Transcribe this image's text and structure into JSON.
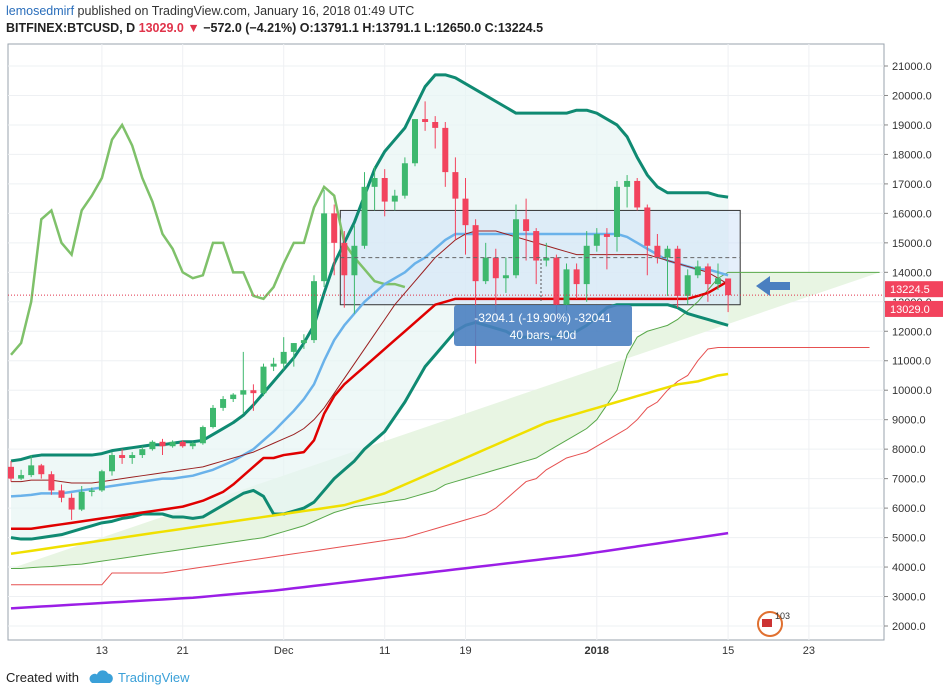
{
  "header": {
    "author": "lemosedmirf",
    "published_text": " published on TradingView.com, January 16, 2018 01:49 UTC",
    "symbol": "BITFINEX:BTCUSD, D",
    "last": "13029.0",
    "change": "−572.0 (−4.21%)",
    "ohlc": "O:13791.1 H:13791.1 L:12650.0 C:13224.5"
  },
  "footer": {
    "created_with": "Created with",
    "brand": "TradingView"
  },
  "colors": {
    "up": "#3eb86e",
    "down": "#f2435d",
    "bb": "#0f8a72",
    "bb_basis": "#6ab2ea",
    "ema_red": "#e00000",
    "ema_yellow": "#f0e000",
    "ema_purple": "#9b1ee6",
    "lagging": "#7fc16a",
    "cloud_fill": "#e8f5e3",
    "box_fill": "#cfe2f7"
  },
  "chart_data": {
    "type": "candlestick",
    "title": "BITFINEX:BTCUSD, D",
    "y_ticks": [
      "21000.0",
      "20000.0",
      "19000.0",
      "18000.0",
      "17000.0",
      "16000.0",
      "15000.0",
      "14000.0",
      "13000.0",
      "12000.0",
      "11000.0",
      "10000.0",
      "9000.0",
      "8000.0",
      "7000.0",
      "6000.0",
      "5000.0",
      "4000.0",
      "3000.0",
      "2000.0"
    ],
    "x_ticks": [
      "13",
      "21",
      "Dec",
      "11",
      "19",
      "2018",
      "15",
      "23"
    ],
    "ylim": [
      1500,
      22000
    ],
    "price_labels": {
      "close": "13224.5",
      "last": "13029.0"
    },
    "measure": {
      "line1": "-3204.1 (-19.90%) -32041",
      "line2": "40 bars, 40d"
    },
    "candles": [
      {
        "d": "Nov 6",
        "o": 7400,
        "h": 7600,
        "l": 6900,
        "c": 7000
      },
      {
        "d": "Nov 7",
        "o": 7000,
        "h": 7300,
        "l": 6950,
        "c": 7120
      },
      {
        "d": "Nov 8",
        "o": 7120,
        "h": 7800,
        "l": 7050,
        "c": 7450
      },
      {
        "d": "Nov 9",
        "o": 7450,
        "h": 7500,
        "l": 7000,
        "c": 7150
      },
      {
        "d": "Nov 10",
        "o": 7150,
        "h": 7250,
        "l": 6450,
        "c": 6600
      },
      {
        "d": "Nov 11",
        "o": 6600,
        "h": 6800,
        "l": 6200,
        "c": 6350
      },
      {
        "d": "Nov 12",
        "o": 6350,
        "h": 6500,
        "l": 5600,
        "c": 5950
      },
      {
        "d": "Nov 13",
        "o": 5950,
        "h": 6750,
        "l": 5900,
        "c": 6550
      },
      {
        "d": "Nov 14",
        "o": 6550,
        "h": 6700,
        "l": 6400,
        "c": 6600
      },
      {
        "d": "Nov 15",
        "o": 6600,
        "h": 7300,
        "l": 6550,
        "c": 7250
      },
      {
        "d": "Nov 16",
        "o": 7250,
        "h": 7900,
        "l": 7100,
        "c": 7800
      },
      {
        "d": "Nov 17",
        "o": 7800,
        "h": 8000,
        "l": 7500,
        "c": 7700
      },
      {
        "d": "Nov 18",
        "o": 7700,
        "h": 7900,
        "l": 7500,
        "c": 7800
      },
      {
        "d": "Nov 19",
        "o": 7800,
        "h": 8100,
        "l": 7700,
        "c": 8000
      },
      {
        "d": "Nov 20",
        "o": 8000,
        "h": 8300,
        "l": 7950,
        "c": 8250
      },
      {
        "d": "Nov 21",
        "o": 8250,
        "h": 8350,
        "l": 7800,
        "c": 8100
      },
      {
        "d": "Nov 22",
        "o": 8100,
        "h": 8300,
        "l": 8050,
        "c": 8250
      },
      {
        "d": "Nov 23",
        "o": 8250,
        "h": 8300,
        "l": 8050,
        "c": 8100
      },
      {
        "d": "Nov 24",
        "o": 8100,
        "h": 8250,
        "l": 8000,
        "c": 8200
      },
      {
        "d": "Nov 25",
        "o": 8200,
        "h": 8800,
        "l": 8150,
        "c": 8750
      },
      {
        "d": "Nov 26",
        "o": 8750,
        "h": 9500,
        "l": 8700,
        "c": 9400
      },
      {
        "d": "Nov 27",
        "o": 9400,
        "h": 9800,
        "l": 9300,
        "c": 9700
      },
      {
        "d": "Nov 28",
        "o": 9700,
        "h": 9900,
        "l": 9600,
        "c": 9850
      },
      {
        "d": "Nov 29",
        "o": 9850,
        "h": 11300,
        "l": 9200,
        "c": 10000
      },
      {
        "d": "Nov 30",
        "o": 10000,
        "h": 10200,
        "l": 9300,
        "c": 9900
      },
      {
        "d": "Dec 1",
        "o": 9900,
        "h": 10900,
        "l": 9800,
        "c": 10800
      },
      {
        "d": "Dec 2",
        "o": 10800,
        "h": 11100,
        "l": 10650,
        "c": 10900
      },
      {
        "d": "Dec 3",
        "o": 10900,
        "h": 11800,
        "l": 10700,
        "c": 11300
      },
      {
        "d": "Dec 4",
        "o": 11300,
        "h": 11600,
        "l": 10800,
        "c": 11600
      },
      {
        "d": "Dec 5",
        "o": 11600,
        "h": 11900,
        "l": 11400,
        "c": 11700
      },
      {
        "d": "Dec 6",
        "o": 11700,
        "h": 13900,
        "l": 11600,
        "c": 13700
      },
      {
        "d": "Dec 7",
        "o": 13700,
        "h": 16800,
        "l": 13500,
        "c": 16000
      },
      {
        "d": "Dec 8",
        "o": 16000,
        "h": 16300,
        "l": 13900,
        "c": 15000
      },
      {
        "d": "Dec 9",
        "o": 15000,
        "h": 15400,
        "l": 12800,
        "c": 13900
      },
      {
        "d": "Dec 10",
        "o": 13900,
        "h": 15600,
        "l": 12600,
        "c": 14900
      },
      {
        "d": "Dec 11",
        "o": 14900,
        "h": 17400,
        "l": 14800,
        "c": 16900
      },
      {
        "d": "Dec 12",
        "o": 16900,
        "h": 17600,
        "l": 16100,
        "c": 17200
      },
      {
        "d": "Dec 13",
        "o": 17200,
        "h": 17500,
        "l": 15900,
        "c": 16400
      },
      {
        "d": "Dec 14",
        "o": 16400,
        "h": 16800,
        "l": 16100,
        "c": 16600
      },
      {
        "d": "Dec 15",
        "o": 16600,
        "h": 17900,
        "l": 16500,
        "c": 17700
      },
      {
        "d": "Dec 16",
        "o": 17700,
        "h": 19200,
        "l": 17600,
        "c": 19200
      },
      {
        "d": "Dec 17",
        "o": 19200,
        "h": 19800,
        "l": 18800,
        "c": 19100
      },
      {
        "d": "Dec 18",
        "o": 19100,
        "h": 19300,
        "l": 18200,
        "c": 18900
      },
      {
        "d": "Dec 19",
        "o": 18900,
        "h": 19100,
        "l": 16900,
        "c": 17400
      },
      {
        "d": "Dec 20",
        "o": 17400,
        "h": 17900,
        "l": 15100,
        "c": 16500
      },
      {
        "d": "Dec 21",
        "o": 16500,
        "h": 17200,
        "l": 14600,
        "c": 15600
      },
      {
        "d": "Dec 22",
        "o": 15600,
        "h": 15800,
        "l": 10900,
        "c": 13700
      },
      {
        "d": "Dec 23",
        "o": 13700,
        "h": 15000,
        "l": 13600,
        "c": 14500
      },
      {
        "d": "Dec 24",
        "o": 14500,
        "h": 14800,
        "l": 12600,
        "c": 13800
      },
      {
        "d": "Dec 25",
        "o": 13800,
        "h": 14500,
        "l": 13300,
        "c": 13900
      },
      {
        "d": "Dec 26",
        "o": 13900,
        "h": 16300,
        "l": 13800,
        "c": 15800
      },
      {
        "d": "Dec 27",
        "o": 15800,
        "h": 16500,
        "l": 14400,
        "c": 15400
      },
      {
        "d": "Dec 28",
        "o": 15400,
        "h": 15500,
        "l": 13600,
        "c": 14400
      },
      {
        "d": "Dec 29",
        "o": 14400,
        "h": 15000,
        "l": 14200,
        "c": 14500
      },
      {
        "d": "Dec 30",
        "o": 14500,
        "h": 14600,
        "l": 12300,
        "c": 12900
      },
      {
        "d": "Dec 31",
        "o": 12900,
        "h": 14300,
        "l": 12700,
        "c": 14100
      },
      {
        "d": "Jan 1",
        "o": 14100,
        "h": 14300,
        "l": 13100,
        "c": 13600
      },
      {
        "d": "Jan 2",
        "o": 13600,
        "h": 15400,
        "l": 13000,
        "c": 14900
      },
      {
        "d": "Jan 3",
        "o": 14900,
        "h": 15500,
        "l": 14700,
        "c": 15300
      },
      {
        "d": "Jan 4",
        "o": 15300,
        "h": 15500,
        "l": 14100,
        "c": 15200
      },
      {
        "d": "Jan 5",
        "o": 15200,
        "h": 17100,
        "l": 14700,
        "c": 16900
      },
      {
        "d": "Jan 6",
        "o": 16900,
        "h": 17300,
        "l": 16200,
        "c": 17100
      },
      {
        "d": "Jan 7",
        "o": 17100,
        "h": 17200,
        "l": 16100,
        "c": 16200
      },
      {
        "d": "Jan 8",
        "o": 16200,
        "h": 16300,
        "l": 13900,
        "c": 14900
      },
      {
        "d": "Jan 9",
        "o": 14900,
        "h": 15300,
        "l": 14300,
        "c": 14500
      },
      {
        "d": "Jan 10",
        "o": 14500,
        "h": 14900,
        "l": 13200,
        "c": 14800
      },
      {
        "d": "Jan 11",
        "o": 14800,
        "h": 14900,
        "l": 12800,
        "c": 13200
      },
      {
        "d": "Jan 12",
        "o": 13200,
        "h": 14100,
        "l": 12900,
        "c": 13900
      },
      {
        "d": "Jan 13",
        "o": 13900,
        "h": 14400,
        "l": 13800,
        "c": 14200
      },
      {
        "d": "Jan 14",
        "o": 14200,
        "h": 14300,
        "l": 13000,
        "c": 13600
      },
      {
        "d": "Jan 15",
        "o": 13600,
        "h": 14300,
        "l": 13400,
        "c": 13800
      },
      {
        "d": "Jan 16",
        "o": 13791,
        "h": 13791,
        "l": 12650,
        "c": 13224
      }
    ],
    "series": [
      {
        "name": "",
        "role": "bb_upper",
        "color": "#0f8a72",
        "values": [
          7600,
          7650,
          7750,
          7800,
          7800,
          7800,
          7800,
          7800,
          7800,
          7850,
          7950,
          8000,
          8050,
          8100,
          8150,
          8150,
          8200,
          8250,
          8250,
          8300,
          8500,
          8700,
          8900,
          9150,
          9500,
          9900,
          10300,
          10700,
          11100,
          11600,
          12200,
          13300,
          14300,
          15000,
          15700,
          16600,
          17500,
          18100,
          18500,
          18900,
          19600,
          20300,
          20700,
          20700,
          20600,
          20400,
          20200,
          20000,
          19800,
          19600,
          19400,
          19400,
          19400,
          19400,
          19400,
          19400,
          19500,
          19500,
          19400,
          19200,
          19000,
          18600,
          17900,
          17300,
          16900,
          16700,
          16700,
          16700,
          16700,
          16700,
          16600,
          16550
        ]
      },
      {
        "name": "",
        "role": "bb_basis",
        "color": "#6ab2ea",
        "values": [
          6400,
          6420,
          6450,
          6500,
          6500,
          6500,
          6550,
          6600,
          6650,
          6700,
          6750,
          6800,
          6850,
          6900,
          6950,
          7000,
          7000,
          7050,
          7100,
          7200,
          7300,
          7450,
          7600,
          7800,
          8000,
          8300,
          8600,
          8950,
          9300,
          9700,
          10200,
          11000,
          11700,
          12200,
          12600,
          13000,
          13300,
          13600,
          13800,
          14000,
          14300,
          14500,
          14800,
          15100,
          15300,
          15300,
          15300,
          15300,
          15300,
          15300,
          15300,
          15300,
          15300,
          15300,
          15300,
          15300,
          15300,
          15300,
          15300,
          15300,
          15300,
          15200,
          15000,
          14800,
          14600,
          14400,
          14300,
          14200,
          14100,
          14100,
          14000,
          13900
        ]
      },
      {
        "name": "",
        "role": "bb_lower",
        "color": "#0f8a72",
        "values": [
          5000,
          4950,
          4950,
          5000,
          5050,
          5100,
          5200,
          5300,
          5400,
          5500,
          5550,
          5650,
          5700,
          5800,
          5800,
          5800,
          5700,
          5700,
          5650,
          5700,
          5900,
          6100,
          6300,
          6500,
          6600,
          6400,
          5800,
          5800,
          5900,
          6000,
          6200,
          6600,
          7000,
          7300,
          7600,
          8000,
          8300,
          8600,
          9100,
          9600,
          10200,
          10800,
          11200,
          11600,
          12000,
          12200,
          12300,
          12200,
          12100,
          12000,
          11800,
          11800,
          11800,
          11800,
          11800,
          11900,
          12000,
          12200,
          12500,
          12800,
          12900,
          12900,
          12900,
          12900,
          12900,
          12900,
          12800,
          12600,
          12500,
          12400,
          12300,
          12200
        ]
      },
      {
        "name": "",
        "role": "ema_red",
        "color": "#e00000",
        "values": [
          5300,
          5300,
          5300,
          5350,
          5400,
          5450,
          5500,
          5550,
          5600,
          5650,
          5700,
          5750,
          5800,
          5850,
          5900,
          5950,
          6000,
          6050,
          6150,
          6250,
          6400,
          6550,
          6800,
          7100,
          7400,
          7700,
          7700,
          7800,
          7850,
          7900,
          8300,
          9200,
          9800,
          10200,
          10500,
          10800,
          11100,
          11400,
          11700,
          12000,
          12300,
          12600,
          12900,
          13000,
          13100,
          13100,
          13100,
          13100,
          13100,
          13100,
          13100,
          13100,
          13100,
          13100,
          13100,
          13100,
          13100,
          13100,
          13100,
          13100,
          13100,
          13100,
          13100,
          13100,
          13100,
          13100,
          13100,
          13100,
          13200,
          13300,
          13500,
          13700
        ]
      },
      {
        "name": "",
        "role": "ema_yellow",
        "color": "#f0e000",
        "values": [
          4450,
          4500,
          4550,
          4600,
          4650,
          4700,
          4750,
          4800,
          4850,
          4900,
          4950,
          5000,
          5050,
          5100,
          5150,
          5200,
          5250,
          5300,
          5350,
          5400,
          5450,
          5500,
          5550,
          5600,
          5650,
          5700,
          5750,
          5800,
          5850,
          5900,
          5950,
          6000,
          6050,
          6100,
          6200,
          6300,
          6400,
          6500,
          6650,
          6800,
          6950,
          7100,
          7250,
          7400,
          7550,
          7700,
          7850,
          8000,
          8150,
          8300,
          8450,
          8600,
          8750,
          8900,
          9000,
          9100,
          9200,
          9300,
          9400,
          9500,
          9600,
          9700,
          9800,
          9900,
          10000,
          10100,
          10200,
          10250,
          10300,
          10400,
          10500,
          10550
        ]
      },
      {
        "name": "",
        "role": "ema_purple",
        "color": "#9b1ee6",
        "values": [
          2600,
          2620,
          2640,
          2660,
          2680,
          2700,
          2720,
          2740,
          2760,
          2780,
          2800,
          2820,
          2840,
          2860,
          2880,
          2900,
          2920,
          2940,
          2960,
          2990,
          3020,
          3050,
          3080,
          3110,
          3140,
          3170,
          3200,
          3240,
          3280,
          3320,
          3360,
          3400,
          3440,
          3480,
          3520,
          3560,
          3600,
          3640,
          3680,
          3720,
          3760,
          3800,
          3840,
          3880,
          3920,
          3960,
          4000,
          4040,
          4080,
          4120,
          4160,
          4200,
          4240,
          4280,
          4320,
          4360,
          4400,
          4450,
          4500,
          4550,
          4600,
          4650,
          4700,
          4750,
          4800,
          4850,
          4900,
          4950,
          5000,
          5050,
          5100,
          5150
        ]
      }
    ]
  }
}
